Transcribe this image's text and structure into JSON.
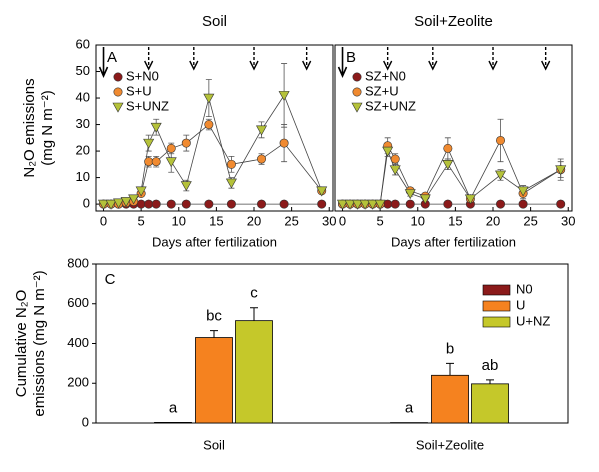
{
  "chart_data": [
    {
      "type": "line",
      "panel_label": "A",
      "title": "Soil",
      "xlabel": "Days after fertilization",
      "ylabel": [
        "N₂O emissions",
        "(mg N m⁻²)"
      ],
      "x": [
        0,
        1,
        2,
        3,
        4,
        5,
        6,
        7,
        9,
        11,
        14,
        17,
        21,
        24,
        29
      ],
      "xlim": [
        -1,
        30.5
      ],
      "xticks": [
        0,
        5,
        10,
        15,
        20,
        25,
        30
      ],
      "ylim": [
        -2.6,
        60
      ],
      "yticks": [
        0,
        10,
        20,
        30,
        40,
        50,
        60
      ],
      "fertilization": {
        "main": 0,
        "extra": [
          6,
          12,
          20,
          27
        ]
      },
      "series": [
        {
          "name": "S+N0",
          "color": "#8b1a1a",
          "marker": "circle",
          "values": [
            0,
            0,
            0,
            0,
            0,
            0,
            0,
            0,
            0,
            0,
            0,
            0,
            0,
            0,
            0
          ],
          "errors": [
            0,
            0,
            0,
            0,
            0,
            0,
            0,
            0,
            0,
            0,
            0,
            0,
            0,
            0,
            0
          ]
        },
        {
          "name": "S+U",
          "color": "#f08a30",
          "marker": "circle",
          "values": [
            0,
            0,
            0,
            0.5,
            1,
            4,
            16,
            16,
            21,
            23,
            30,
            15,
            17,
            23,
            5
          ],
          "errors": [
            0,
            0,
            0,
            0,
            0,
            1,
            2,
            2,
            2,
            3,
            2,
            3,
            2,
            7,
            1
          ]
        },
        {
          "name": "S+UNZ",
          "color": "#b5c23a",
          "marker": "triangle",
          "values": [
            0,
            0,
            0.5,
            1,
            2,
            5,
            23,
            29,
            16,
            7,
            40,
            8,
            28,
            41,
            5
          ],
          "errors": [
            0,
            0,
            0,
            0,
            0,
            1,
            3,
            3,
            4,
            2,
            7,
            2,
            3,
            12,
            1
          ]
        }
      ]
    },
    {
      "type": "line",
      "panel_label": "B",
      "title": "Soil+Zeolite",
      "xlabel": "Days after fertilization",
      "x": [
        0,
        1,
        2,
        3,
        4,
        5,
        6,
        7,
        9,
        11,
        14,
        17,
        21,
        24,
        29
      ],
      "xlim": [
        -1,
        30.5
      ],
      "xticks": [
        0,
        5,
        10,
        15,
        20,
        25,
        30
      ],
      "ylim": [
        -2.6,
        60
      ],
      "fertilization": {
        "main": 0,
        "extra": [
          6,
          12,
          20,
          27
        ]
      },
      "series": [
        {
          "name": "SZ+N0",
          "color": "#8b1a1a",
          "marker": "circle",
          "values": [
            0,
            0,
            0,
            0,
            0,
            0,
            0,
            0,
            0,
            0,
            0,
            0,
            0,
            0,
            0
          ],
          "errors": [
            0,
            0,
            0,
            0,
            0,
            0,
            0,
            0,
            0,
            0,
            0,
            0,
            0,
            0,
            0
          ]
        },
        {
          "name": "SZ+U",
          "color": "#f08a30",
          "marker": "circle",
          "values": [
            0,
            0,
            0,
            0,
            0,
            0,
            22,
            17,
            5,
            3,
            21,
            2,
            24,
            4,
            13
          ],
          "errors": [
            0,
            0,
            0,
            0,
            0,
            0,
            3,
            2,
            1,
            1,
            4,
            1,
            8,
            2,
            4
          ]
        },
        {
          "name": "SZ+UNZ",
          "color": "#b5c23a",
          "marker": "triangle",
          "values": [
            0,
            0,
            0,
            0,
            0,
            0,
            20,
            13,
            4,
            2,
            15,
            2,
            11,
            5,
            13
          ],
          "errors": [
            0,
            0,
            0,
            0,
            0,
            0,
            2,
            2,
            1,
            1,
            2,
            1,
            2,
            2,
            3
          ]
        }
      ]
    },
    {
      "type": "bar",
      "panel_label": "C",
      "ylabel": [
        "Cumulative N₂O",
        "emissions (mg N m⁻²)"
      ],
      "categories": [
        "Soil",
        "Soil+Zeolite"
      ],
      "ylim": [
        0,
        800
      ],
      "yticks": [
        0,
        200,
        400,
        600,
        800
      ],
      "series": [
        {
          "name": "N0",
          "color": "#8b1a1a",
          "values": [
            3,
            2
          ],
          "errors": [
            0,
            0
          ],
          "letters": [
            "a",
            "a"
          ]
        },
        {
          "name": "U",
          "color": "#f5821f",
          "values": [
            430,
            240
          ],
          "errors": [
            35,
            60
          ],
          "letters": [
            "bc",
            "b"
          ]
        },
        {
          "name": "U+NZ",
          "color": "#c5c82a",
          "values": [
            515,
            197
          ],
          "errors": [
            65,
            20
          ],
          "letters": [
            "c",
            "ab"
          ]
        }
      ]
    }
  ]
}
